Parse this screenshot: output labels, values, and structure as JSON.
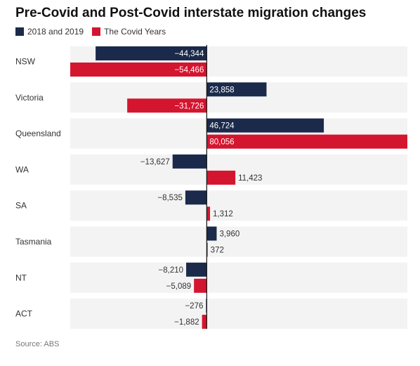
{
  "title": "Pre-Covid and Post-Covid interstate migration changes",
  "source": "Source: ABS",
  "colors": {
    "pre": "#1b2a4a",
    "covid": "#d4152f",
    "row_bg": "#f3f3f3",
    "axis": "#111111"
  },
  "chart_data": {
    "type": "bar",
    "orientation": "horizontal",
    "title": "Pre-Covid and Post-Covid interstate migration changes",
    "categories": [
      "NSW",
      "Victoria",
      "Queensland",
      "WA",
      "SA",
      "Tasmania",
      "NT",
      "ACT"
    ],
    "series": [
      {
        "name": "2018 and 2019",
        "values": [
          -44344,
          23858,
          46724,
          -13627,
          -8535,
          3960,
          -8210,
          -276
        ],
        "labels": [
          "−44,344",
          "23,858",
          "46,724",
          "−13,627",
          "−8,535",
          "3,960",
          "−8,210",
          "−276"
        ]
      },
      {
        "name": "The Covid Years",
        "values": [
          -54466,
          -31726,
          80056,
          11423,
          1312,
          372,
          -5089,
          -1882
        ],
        "labels": [
          "−54,466",
          "−31,726",
          "80,056",
          "11,423",
          "1,312",
          "372",
          "−5,089",
          "−1,882"
        ]
      }
    ],
    "xlim": [
      -54466,
      80056
    ],
    "legend_position": "top-left",
    "grid": false
  }
}
